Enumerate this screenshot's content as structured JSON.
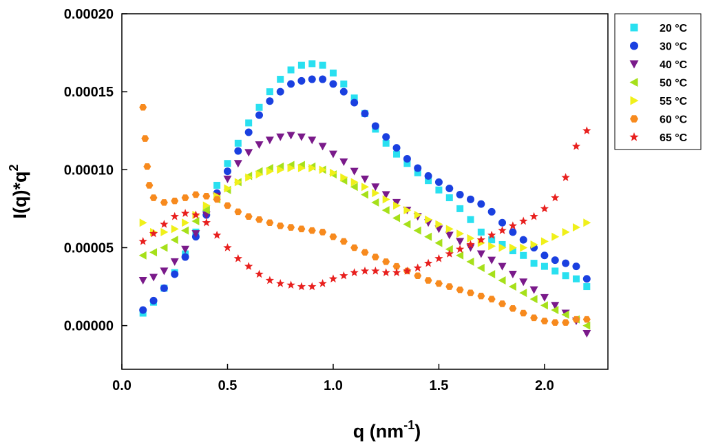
{
  "chart_data": {
    "type": "scatter",
    "title": "",
    "xlabel": "q (nm",
    "xlabel_sup": "-1",
    "xlabel_end": ")",
    "ylabel": "I(q)*q",
    "ylabel_sup": "2",
    "xlim": [
      0.0,
      2.3
    ],
    "ylim": [
      -2.8e-05,
      0.0002
    ],
    "xticks": [
      {
        "value": 0.0,
        "label": "0.0"
      },
      {
        "value": 0.5,
        "label": "0.5"
      },
      {
        "value": 1.0,
        "label": "1.0"
      },
      {
        "value": 1.5,
        "label": "1.5"
      },
      {
        "value": 2.0,
        "label": "2.0"
      }
    ],
    "yticks": [
      {
        "value": 0.0,
        "label": "0.00000"
      },
      {
        "value": 5e-05,
        "label": "0.00005"
      },
      {
        "value": 0.0001,
        "label": "0.00010"
      },
      {
        "value": 0.00015,
        "label": "0.00015"
      },
      {
        "value": 0.0002,
        "label": "0.00020"
      }
    ],
    "legend_position": "top-right, outside plot",
    "grid": false,
    "series": [
      {
        "name": "20 °C",
        "color": "#29e0f0",
        "marker": "square",
        "x": [
          0.1,
          0.15,
          0.2,
          0.25,
          0.3,
          0.35,
          0.4,
          0.45,
          0.5,
          0.55,
          0.6,
          0.65,
          0.7,
          0.75,
          0.8,
          0.85,
          0.9,
          0.95,
          1.0,
          1.05,
          1.1,
          1.15,
          1.2,
          1.25,
          1.3,
          1.35,
          1.4,
          1.45,
          1.5,
          1.55,
          1.6,
          1.65,
          1.7,
          1.75,
          1.8,
          1.85,
          1.9,
          1.95,
          2.0,
          2.05,
          2.1,
          2.15,
          2.2
        ],
        "y": [
          8e-06,
          1.5e-05,
          2.4e-05,
          3.4e-05,
          4.6e-05,
          6e-05,
          7.5e-05,
          9e-05,
          0.000104,
          0.000117,
          0.00013,
          0.00014,
          0.00015,
          0.000158,
          0.000164,
          0.000167,
          0.000168,
          0.000167,
          0.000162,
          0.000155,
          0.000146,
          0.000136,
          0.000126,
          0.000117,
          0.00011,
          0.000104,
          9.8e-05,
          9.3e-05,
          8.7e-05,
          8.2e-05,
          7.5e-05,
          6.8e-05,
          6e-05,
          5.5e-05,
          5.2e-05,
          4.8e-05,
          4.5e-05,
          4e-05,
          3.8e-05,
          3.5e-05,
          3.2e-05,
          3e-05,
          2.5e-05
        ]
      },
      {
        "name": "30 °C",
        "color": "#1a40e0",
        "marker": "circle",
        "x": [
          0.1,
          0.15,
          0.2,
          0.25,
          0.3,
          0.35,
          0.4,
          0.45,
          0.5,
          0.55,
          0.6,
          0.65,
          0.7,
          0.75,
          0.8,
          0.85,
          0.9,
          0.95,
          1.0,
          1.05,
          1.1,
          1.15,
          1.2,
          1.25,
          1.3,
          1.35,
          1.4,
          1.45,
          1.5,
          1.55,
          1.6,
          1.65,
          1.7,
          1.75,
          1.8,
          1.85,
          1.9,
          1.95,
          2.0,
          2.05,
          2.1,
          2.15,
          2.2
        ],
        "y": [
          1e-05,
          1.6e-05,
          2.4e-05,
          3.3e-05,
          4.4e-05,
          5.7e-05,
          7.1e-05,
          8.5e-05,
          9.9e-05,
          0.000112,
          0.000124,
          0.000135,
          0.000144,
          0.00015,
          0.000155,
          0.000157,
          0.000158,
          0.000158,
          0.000155,
          0.00015,
          0.000143,
          0.000136,
          0.000128,
          0.000121,
          0.000114,
          0.000107,
          0.000101,
          9.6e-05,
          9.2e-05,
          8.8e-05,
          8.4e-05,
          8.1e-05,
          7.8e-05,
          7.3e-05,
          6.6e-05,
          6e-05,
          5.5e-05,
          5e-05,
          4.5e-05,
          4.2e-05,
          4e-05,
          3.8e-05,
          3e-05
        ]
      },
      {
        "name": "40 °C",
        "color": "#7a1a8a",
        "marker": "triangle-down",
        "x": [
          0.1,
          0.15,
          0.2,
          0.25,
          0.3,
          0.35,
          0.4,
          0.45,
          0.5,
          0.55,
          0.6,
          0.65,
          0.7,
          0.75,
          0.8,
          0.85,
          0.9,
          0.95,
          1.0,
          1.05,
          1.1,
          1.15,
          1.2,
          1.25,
          1.3,
          1.35,
          1.4,
          1.45,
          1.5,
          1.55,
          1.6,
          1.65,
          1.7,
          1.75,
          1.8,
          1.85,
          1.9,
          1.95,
          2.0,
          2.05,
          2.1,
          2.15,
          2.2
        ],
        "y": [
          2.9e-05,
          3.1e-05,
          3.5e-05,
          4.1e-05,
          4.9e-05,
          5.9e-05,
          7.1e-05,
          8.3e-05,
          9.4e-05,
          0.000104,
          0.000111,
          0.000116,
          0.000119,
          0.000121,
          0.000122,
          0.000121,
          0.000119,
          0.000115,
          0.00011,
          0.000105,
          9.9e-05,
          9.4e-05,
          8.9e-05,
          8.4e-05,
          7.9e-05,
          7.4e-05,
          7e-05,
          6.6e-05,
          6.2e-05,
          5.8e-05,
          5.4e-05,
          5e-05,
          4.6e-05,
          4.2e-05,
          3.8e-05,
          3.3e-05,
          2.8e-05,
          2.3e-05,
          1.8e-05,
          1.3e-05,
          8e-06,
          3e-06,
          -5e-06
        ]
      },
      {
        "name": "50 °C",
        "color": "#a6e01a",
        "marker": "triangle-left",
        "x": [
          0.1,
          0.15,
          0.2,
          0.25,
          0.3,
          0.35,
          0.4,
          0.45,
          0.5,
          0.55,
          0.6,
          0.65,
          0.7,
          0.75,
          0.8,
          0.85,
          0.9,
          0.95,
          1.0,
          1.05,
          1.1,
          1.15,
          1.2,
          1.25,
          1.3,
          1.35,
          1.4,
          1.45,
          1.5,
          1.55,
          1.6,
          1.65,
          1.7,
          1.75,
          1.8,
          1.85,
          1.9,
          1.95,
          2.0,
          2.05,
          2.1,
          2.15,
          2.2
        ],
        "y": [
          4.5e-05,
          4.7e-05,
          5e-05,
          5.5e-05,
          6.1e-05,
          6.7e-05,
          7.4e-05,
          8.1e-05,
          8.7e-05,
          9.2e-05,
          9.6e-05,
          9.9e-05,
          0.000101,
          0.000102,
          0.000103,
          0.000103,
          0.000102,
          0.0001,
          9.7e-05,
          9.3e-05,
          8.9e-05,
          8.4e-05,
          7.9e-05,
          7.4e-05,
          6.9e-05,
          6.5e-05,
          6.1e-05,
          5.7e-05,
          5.3e-05,
          4.9e-05,
          4.5e-05,
          4.1e-05,
          3.7e-05,
          3.3e-05,
          2.9e-05,
          2.5e-05,
          2.1e-05,
          1.7e-05,
          1.3e-05,
          1e-05,
          7e-06,
          4e-06,
          0.0
        ]
      },
      {
        "name": "55 °C",
        "color": "#f0f01a",
        "marker": "triangle-right",
        "x": [
          0.1,
          0.15,
          0.2,
          0.25,
          0.3,
          0.35,
          0.4,
          0.45,
          0.5,
          0.55,
          0.6,
          0.65,
          0.7,
          0.75,
          0.8,
          0.85,
          0.9,
          0.95,
          1.0,
          1.05,
          1.1,
          1.15,
          1.2,
          1.25,
          1.3,
          1.35,
          1.4,
          1.45,
          1.5,
          1.55,
          1.6,
          1.65,
          1.7,
          1.75,
          1.8,
          1.85,
          1.9,
          1.95,
          2.0,
          2.05,
          2.1,
          2.15,
          2.2
        ],
        "y": [
          6.6e-05,
          6e-05,
          6e-05,
          6.2e-05,
          6.6e-05,
          7.1e-05,
          7.7e-05,
          8.3e-05,
          8.8e-05,
          9.2e-05,
          9.5e-05,
          9.7e-05,
          9.9e-05,
          0.0001,
          0.000101,
          0.000101,
          0.000101,
          0.0001,
          9.8e-05,
          9.5e-05,
          9.2e-05,
          8.9e-05,
          8.5e-05,
          8.1e-05,
          7.7e-05,
          7.4e-05,
          7.1e-05,
          6.8e-05,
          6.5e-05,
          6.2e-05,
          5.9e-05,
          5.6e-05,
          5.3e-05,
          5.1e-05,
          5e-05,
          5e-05,
          5e-05,
          5.2e-05,
          5.4e-05,
          5.7e-05,
          6e-05,
          6.3e-05,
          6.6e-05
        ]
      },
      {
        "name": "60 °C",
        "color": "#f78a1e",
        "marker": "hexagon",
        "x": [
          0.1,
          0.11,
          0.12,
          0.13,
          0.15,
          0.2,
          0.25,
          0.3,
          0.35,
          0.4,
          0.45,
          0.5,
          0.55,
          0.6,
          0.65,
          0.7,
          0.75,
          0.8,
          0.85,
          0.9,
          0.95,
          1.0,
          1.05,
          1.1,
          1.15,
          1.2,
          1.25,
          1.3,
          1.35,
          1.4,
          1.45,
          1.5,
          1.55,
          1.6,
          1.65,
          1.7,
          1.75,
          1.8,
          1.85,
          1.9,
          1.95,
          2.0,
          2.05,
          2.1,
          2.15,
          2.2
        ],
        "y": [
          0.00014,
          0.00012,
          0.000102,
          9e-05,
          8.2e-05,
          7.9e-05,
          8e-05,
          8.2e-05,
          8.4e-05,
          8.3e-05,
          8.1e-05,
          7.7e-05,
          7.3e-05,
          7e-05,
          6.8e-05,
          6.6e-05,
          6.4e-05,
          6.3e-05,
          6.2e-05,
          6.1e-05,
          6e-05,
          5.7e-05,
          5.4e-05,
          5e-05,
          4.7e-05,
          4.4e-05,
          4.1e-05,
          3.8e-05,
          3.5e-05,
          3.2e-05,
          2.9e-05,
          2.7e-05,
          2.5e-05,
          2.3e-05,
          2.1e-05,
          1.9e-05,
          1.7e-05,
          1.4e-05,
          1.1e-05,
          8e-06,
          5e-06,
          3e-06,
          2e-06,
          2e-06,
          4e-06,
          4e-06
        ]
      },
      {
        "name": "65 °C",
        "color": "#e8201e",
        "marker": "star",
        "x": [
          0.1,
          0.15,
          0.2,
          0.25,
          0.3,
          0.35,
          0.4,
          0.45,
          0.5,
          0.55,
          0.6,
          0.65,
          0.7,
          0.75,
          0.8,
          0.85,
          0.9,
          0.95,
          1.0,
          1.05,
          1.1,
          1.15,
          1.2,
          1.25,
          1.3,
          1.35,
          1.4,
          1.45,
          1.5,
          1.55,
          1.6,
          1.65,
          1.7,
          1.75,
          1.8,
          1.85,
          1.9,
          1.95,
          2.0,
          2.05,
          2.1,
          2.15,
          2.2
        ],
        "y": [
          5.4e-05,
          5.9e-05,
          6.5e-05,
          7e-05,
          7.2e-05,
          7.1e-05,
          6.6e-05,
          5.8e-05,
          5e-05,
          4.3e-05,
          3.8e-05,
          3.3e-05,
          2.9e-05,
          2.7e-05,
          2.6e-05,
          2.5e-05,
          2.5e-05,
          2.7e-05,
          3e-05,
          3.2e-05,
          3.4e-05,
          3.5e-05,
          3.5e-05,
          3.4e-05,
          3.4e-05,
          3.5e-05,
          3.7e-05,
          4e-05,
          4.3e-05,
          4.6e-05,
          4.9e-05,
          5.2e-05,
          5.5e-05,
          5.8e-05,
          6.1e-05,
          6.4e-05,
          6.7e-05,
          7e-05,
          7.5e-05,
          8.2e-05,
          9.5e-05,
          0.000115,
          0.000125
        ]
      }
    ]
  }
}
